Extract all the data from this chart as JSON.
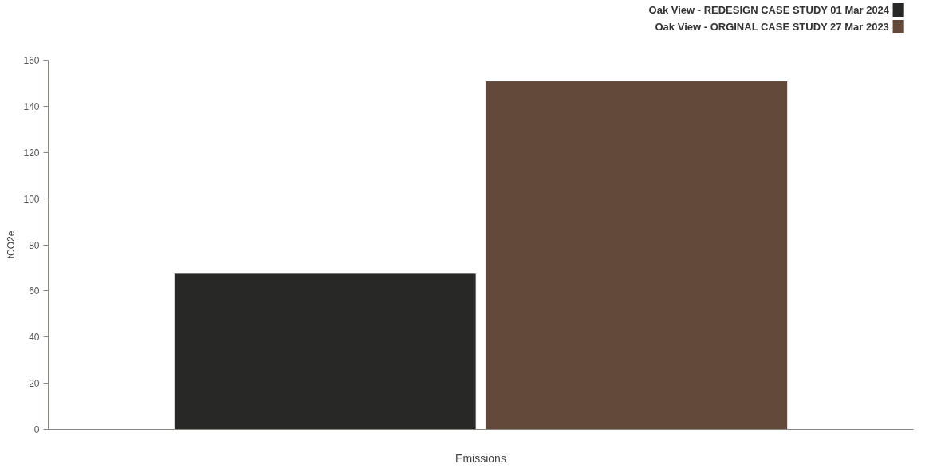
{
  "chart_data": {
    "type": "bar",
    "ylabel": "tCO2e",
    "categories": [
      "Emissions"
    ],
    "series": [
      {
        "name": "Oak View - REDESIGN CASE STUDY 01 Mar 2024",
        "color": "#282826",
        "values": [
          67.6
        ]
      },
      {
        "name": "Oak View - ORGINAL CASE STUDY 27 Mar 2023",
        "color": "#624939",
        "values": [
          151
        ]
      }
    ],
    "ylim": [
      0,
      160
    ],
    "yticks": [
      0,
      20,
      40,
      60,
      80,
      100,
      120,
      140,
      160
    ],
    "grid": false,
    "legend": "top right"
  }
}
